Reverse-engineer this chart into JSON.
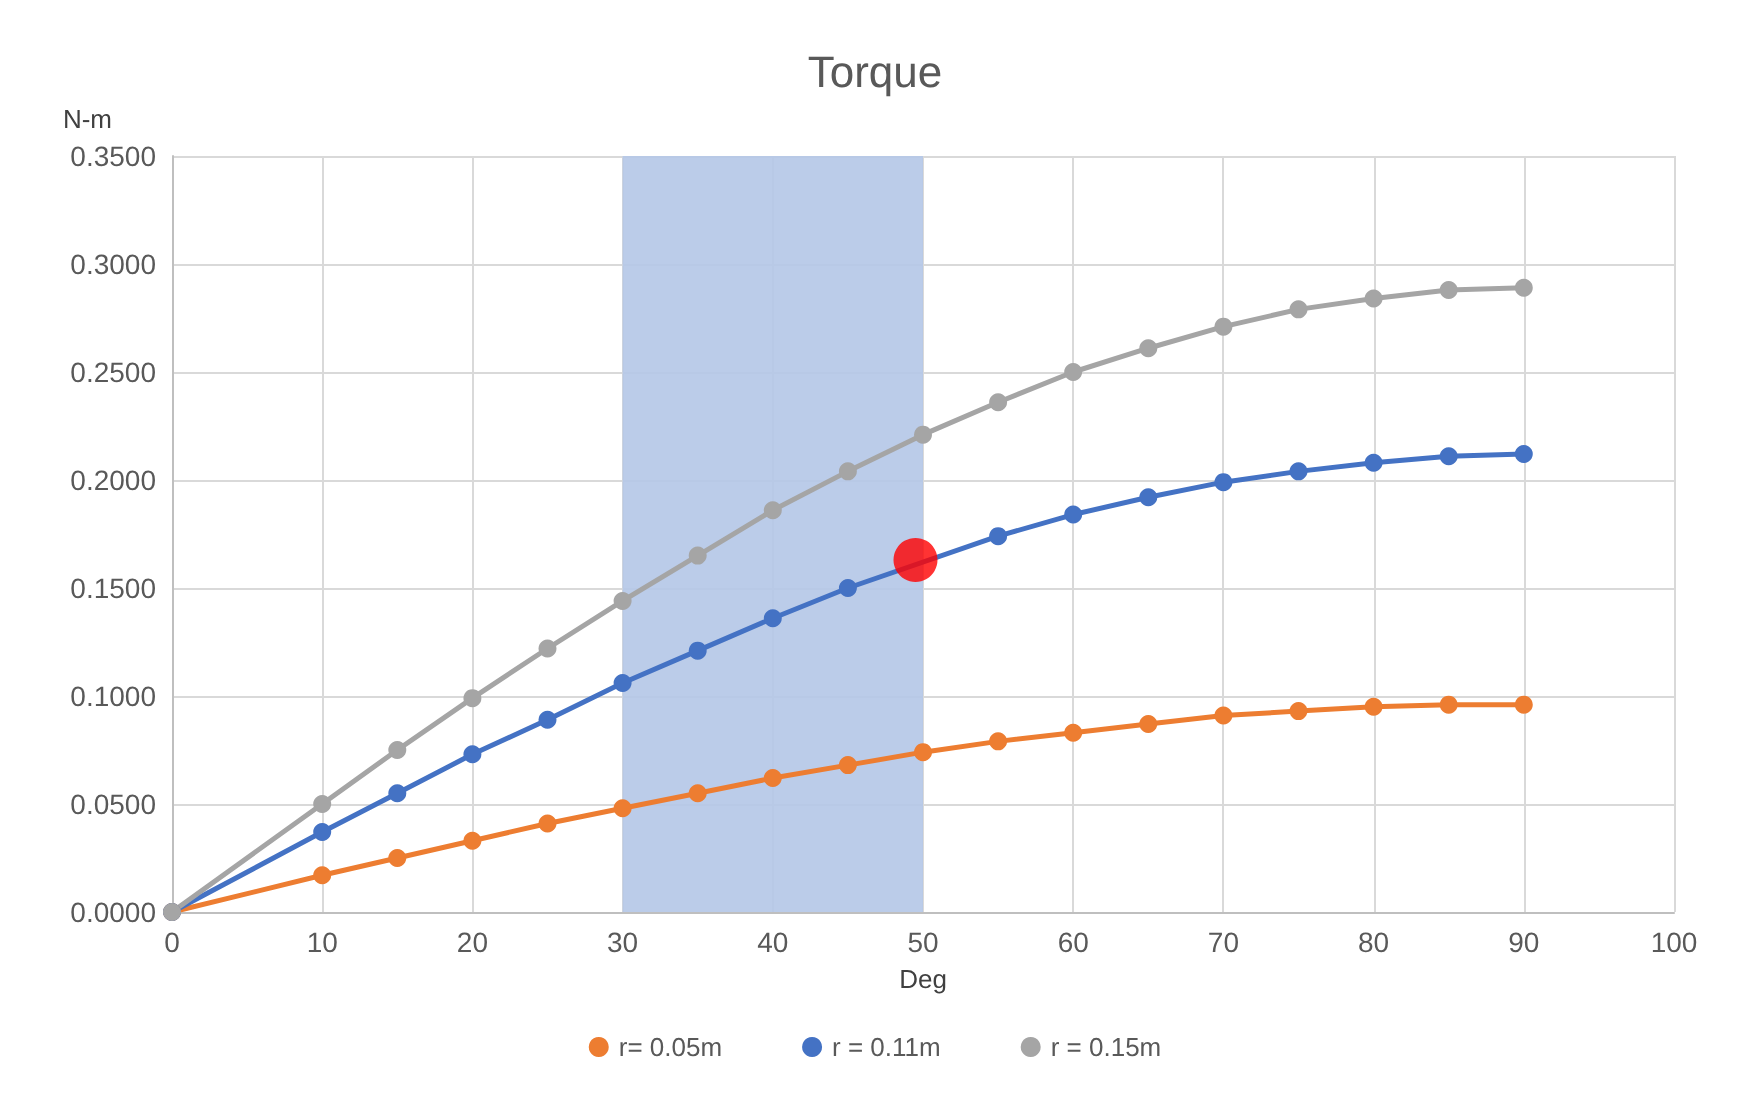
{
  "chart_data": {
    "type": "line",
    "title": "Torque",
    "xlabel": "Deg",
    "ylabel": "N-m",
    "x": [
      0,
      10,
      15,
      20,
      25,
      30,
      35,
      40,
      45,
      50,
      55,
      60,
      65,
      70,
      75,
      80,
      85,
      90
    ],
    "series": [
      {
        "name": "r= 0.05m",
        "color": "#ed7d31",
        "values": [
          0,
          0.017,
          0.025,
          0.033,
          0.041,
          0.048,
          0.055,
          0.062,
          0.068,
          0.074,
          0.079,
          0.083,
          0.087,
          0.091,
          0.093,
          0.095,
          0.096,
          0.096
        ]
      },
      {
        "name": "r = 0.11m",
        "color": "#4472c4",
        "values": [
          0,
          0.037,
          0.055,
          0.073,
          0.089,
          0.106,
          0.121,
          0.136,
          0.15,
          null,
          0.174,
          0.184,
          0.192,
          0.199,
          0.204,
          0.208,
          0.211,
          0.212
        ]
      },
      {
        "name": "r = 0.15m",
        "color": "#a5a5a5",
        "values": [
          0,
          0.05,
          0.075,
          0.099,
          0.122,
          0.144,
          0.165,
          0.186,
          0.204,
          0.221,
          0.236,
          0.25,
          0.261,
          0.271,
          0.279,
          0.284,
          0.288,
          0.289
        ]
      },
      {
        "type": "scatter",
        "color": "#ff0000",
        "x": [
          49.5
        ],
        "values": [
          0.163
        ]
      }
    ],
    "xlim": [
      0,
      100
    ],
    "xticks": [
      0,
      10,
      20,
      30,
      40,
      50,
      60,
      70,
      80,
      90,
      100
    ],
    "ylim": [
      0,
      0.35
    ],
    "yticks": [
      {
        "value": 0,
        "label": "0.0000"
      },
      {
        "value": 0.05,
        "label": "0.0500"
      },
      {
        "value": 0.1,
        "label": "0.1000"
      },
      {
        "value": 0.15,
        "label": "0.1500"
      },
      {
        "value": 0.2,
        "label": "0.2000"
      },
      {
        "value": 0.25,
        "label": "0.2500"
      },
      {
        "value": 0.3,
        "label": "0.3000"
      },
      {
        "value": 0.35,
        "label": "0.3500"
      }
    ],
    "bands": [
      {
        "axis": "x",
        "from": 30,
        "to": 50,
        "color": "#b4c7e7"
      }
    ],
    "grid": true,
    "legend": "bottom",
    "marker": "circle",
    "line_style": "solid"
  }
}
